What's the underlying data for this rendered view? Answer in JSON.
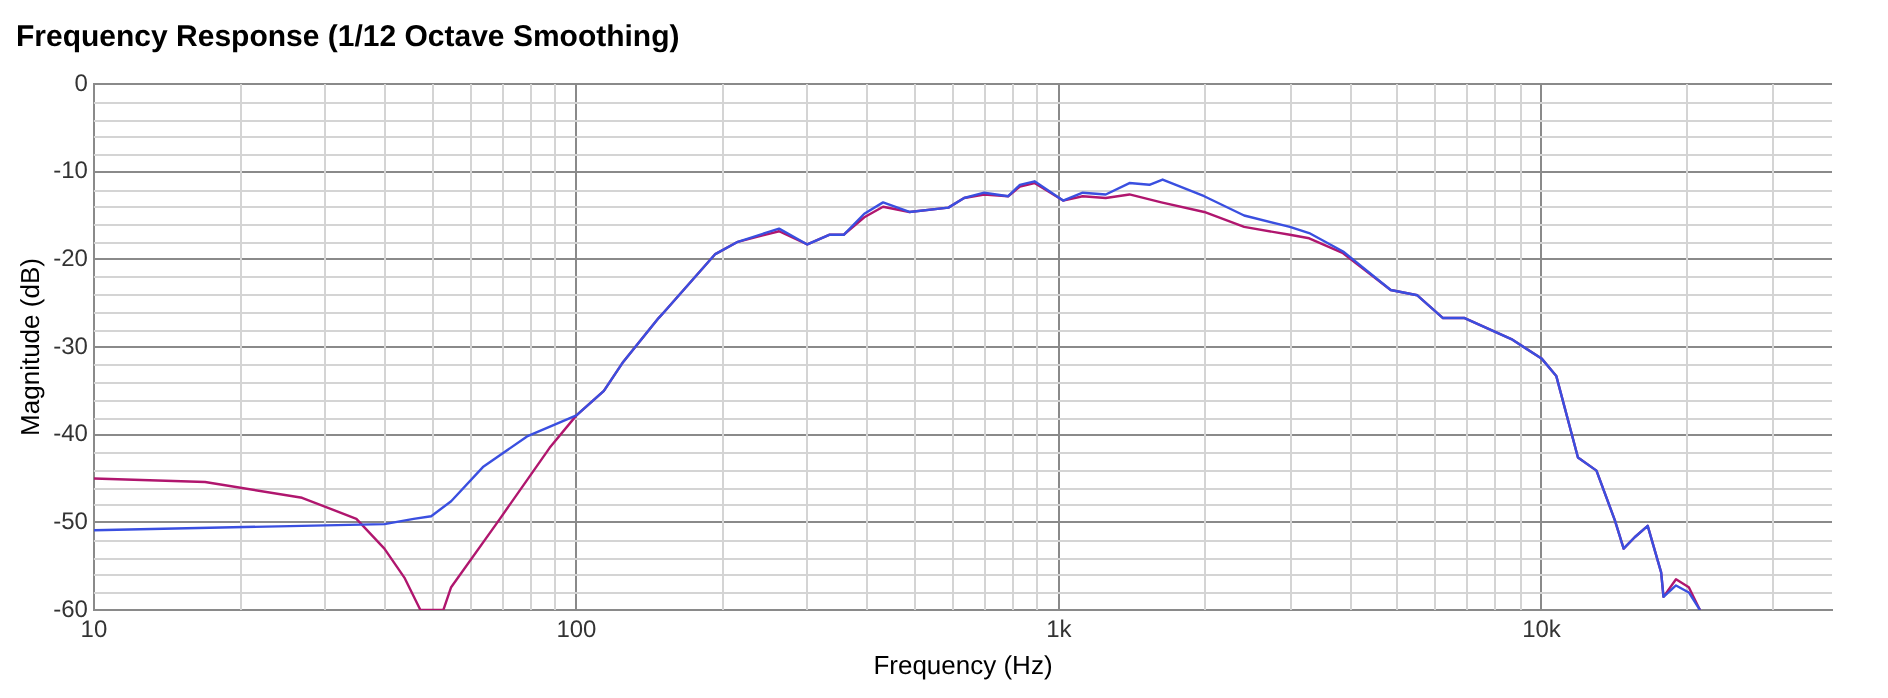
{
  "chart_data": {
    "type": "line",
    "title": "Frequency Response (1/12 Octave Smoothing)",
    "xlabel": "Frequency (Hz)",
    "ylabel": "Magnitude (dB)",
    "log": "x",
    "grid": true,
    "marker": "none",
    "line_style": "solid",
    "xlim": [
      10,
      40000
    ],
    "xticks": [
      10,
      100,
      {
        "value": 1000,
        "label": "1k"
      },
      {
        "value": 10000,
        "label": "10k"
      }
    ],
    "ylim": [
      -60,
      0
    ],
    "yticks": [
      -60,
      -50,
      -40,
      -30,
      -20,
      -10,
      0
    ],
    "series": [
      {
        "color": "#3a4fe0",
        "x": [
          10,
          27,
          40,
          46,
          50,
          55,
          64,
          79,
          100,
          114,
          125,
          148,
          152,
          194,
          216,
          263,
          301,
          334,
          358,
          395,
          432,
          490,
          590,
          636,
          700,
          785,
          830,
          890,
          1020,
          1120,
          1250,
          1400,
          1540,
          1640,
          2000,
          2420,
          3010,
          3300,
          3880,
          4870,
          5530,
          6250,
          6930,
          8660,
          10000,
          10730,
          11900,
          13000,
          14200,
          14800,
          15600,
          16600,
          17700,
          17900,
          19000,
          20200,
          21300
        ],
        "values": [
          -50.9,
          -50.4,
          -50.2,
          -49.6,
          -49.3,
          -47.6,
          -43.7,
          -40.2,
          -37.8,
          -35,
          -31.7,
          -26.7,
          -26,
          -19.4,
          -18,
          -16.5,
          -18.3,
          -17.2,
          -17.2,
          -14.8,
          -13.5,
          -14.6,
          -14.1,
          -13,
          -12.4,
          -12.8,
          -11.5,
          -11.1,
          -13.3,
          -12.4,
          -12.6,
          -11.3,
          -11.5,
          -10.9,
          -12.8,
          -15,
          -16.3,
          -17,
          -19.1,
          -23.5,
          -24.1,
          -26.7,
          -26.7,
          -29.1,
          -31.3,
          -33.3,
          -42.6,
          -44.1,
          -49.8,
          -53,
          -51.7,
          -50.4,
          -55.7,
          -58.5,
          -57.2,
          -58,
          -60
        ]
      },
      {
        "color": "#b0166e",
        "x": [
          10,
          17,
          27,
          35,
          40,
          44,
          47.5,
          53,
          55,
          69,
          88,
          100,
          114,
          125,
          148,
          152,
          194,
          216,
          263,
          301,
          334,
          358,
          395,
          432,
          490,
          590,
          636,
          700,
          785,
          830,
          890,
          1020,
          1120,
          1250,
          1400,
          1630,
          2000,
          2420,
          3010,
          3300,
          3880,
          4870,
          5530,
          6250,
          6930,
          8660,
          10000,
          10730,
          11900,
          13000,
          14200,
          14800,
          15600,
          16600,
          17700,
          17900,
          19000,
          20200,
          21300
        ],
        "values": [
          -45,
          -45.4,
          -47.2,
          -49.6,
          -53,
          -56.3,
          -60,
          -60,
          -57.4,
          -49.8,
          -41.5,
          -37.8,
          -35,
          -31.7,
          -26.7,
          -26,
          -19.4,
          -18,
          -16.8,
          -18.3,
          -17.2,
          -17.2,
          -15.2,
          -14,
          -14.6,
          -14.1,
          -13,
          -12.6,
          -12.8,
          -11.7,
          -11.3,
          -13.3,
          -12.8,
          -13,
          -12.6,
          -13.5,
          -14.6,
          -16.3,
          -17.2,
          -17.6,
          -19.3,
          -23.5,
          -24.1,
          -26.7,
          -26.7,
          -29.1,
          -31.3,
          -33.3,
          -42.6,
          -44.1,
          -49.8,
          -53,
          -51.7,
          -50.4,
          -55.7,
          -58.5,
          -56.5,
          -57.4,
          -60
        ]
      }
    ]
  }
}
